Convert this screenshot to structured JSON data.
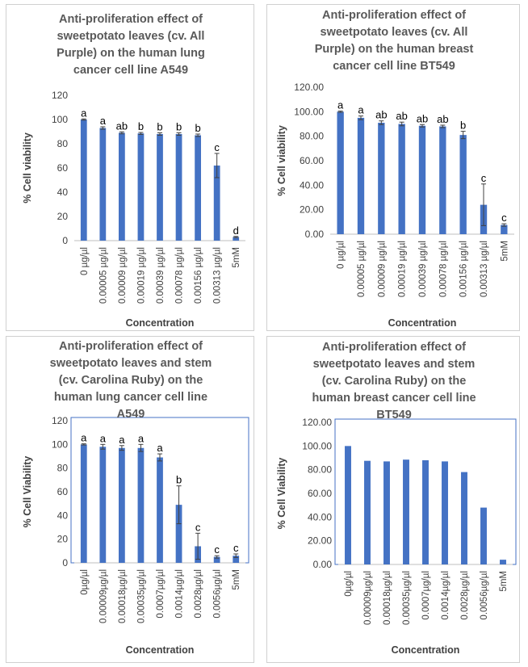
{
  "chart_data": [
    {
      "type": "bar",
      "title_lines": [
        "Anti-proliferation effect of",
        "sweetpotato  leaves (cv. All",
        "Purple) on the human lung",
        "cancer cell line A549"
      ],
      "xlabel": "Concentration",
      "ylabel": "% Cell viability",
      "ylim": [
        0,
        120
      ],
      "yticks": [
        "0",
        "20",
        "40",
        "60",
        "80",
        "100",
        "120"
      ],
      "categories": [
        "0 µg/µl",
        "0.00005 µg/µl",
        "0.00009 µg/µl",
        "0.00019 µg/µl",
        "0.00039 µg/µl",
        "0.00078 µg/µl",
        "0.00156 µg/µl",
        "0.00313 µg/µl",
        "5mM"
      ],
      "values": [
        100,
        93,
        89,
        88.5,
        88,
        88,
        87,
        62,
        3
      ],
      "errors": [
        0.5,
        1,
        0.8,
        0.8,
        1,
        1,
        1,
        10,
        0.5
      ],
      "labels": [
        "a",
        "a",
        "ab",
        "b",
        "b",
        "b",
        "b",
        "c",
        "d"
      ],
      "color": "#4472C4",
      "border": false
    },
    {
      "type": "bar",
      "title_lines": [
        "Anti-proliferation effect of",
        "sweetpotato leaves (cv. All",
        "Purple) on the human breast",
        "cancer cell line BT549"
      ],
      "xlabel": "Concentration",
      "ylabel": "% Cell viability",
      "ylim": [
        0,
        120
      ],
      "yticks": [
        "0.00",
        "20.00",
        "40.00",
        "60.00",
        "80.00",
        "100.00",
        "120.00"
      ],
      "categories": [
        "0 µg/µl",
        "0.00005 µg/µl",
        "0.00009 µg/µl",
        "0.00019 µg/µl",
        "0.00039 µg/µl",
        "0.00078 µg/µl",
        "0.00156 µg/µl",
        "0.00313 µg/µl",
        "5mM"
      ],
      "values": [
        100,
        95,
        91,
        90,
        88.5,
        88,
        81,
        24,
        7.5
      ],
      "errors": [
        0.5,
        1.5,
        1.5,
        1.5,
        1,
        1,
        3,
        17,
        1
      ],
      "labels": [
        "a",
        "a",
        "ab",
        "ab",
        "ab",
        "ab",
        "b",
        "c",
        "c"
      ],
      "color": "#4472C4",
      "border": false
    },
    {
      "type": "bar",
      "title_lines": [
        "Anti-proliferation effect of",
        "sweetpotato leaves and stem",
        "(cv. Carolina Ruby) on the",
        "human lung cancer cell line",
        "A549"
      ],
      "xlabel": "Concentration",
      "ylabel": "% Cell Viability",
      "ylim": [
        0,
        120
      ],
      "yticks": [
        "0",
        "20",
        "40",
        "60",
        "80",
        "100",
        "120"
      ],
      "categories": [
        "0µg/µl",
        "0.00009µg/µl",
        "0.00018µg/µl",
        "0.00035µg/µl",
        "0.0007µg/µl",
        "0.0014µg/µl",
        "0.0028µg/µl",
        "0.0056µg/µl",
        "5mM"
      ],
      "values": [
        100,
        98,
        97,
        97,
        89,
        49,
        14,
        5,
        6
      ],
      "errors": [
        0.5,
        2,
        2,
        3,
        3,
        16,
        11,
        1,
        1.5
      ],
      "labels": [
        "a",
        "a",
        "a",
        "a",
        "a",
        "b",
        "c",
        "c",
        "c"
      ],
      "color": "#4472C4",
      "border": true
    },
    {
      "type": "bar",
      "title_lines": [
        "Anti-proliferation effect of",
        "sweetpotato leaves and stem",
        "(cv. Carolina Ruby) on the",
        "human breast cancer cell line",
        "BT549"
      ],
      "xlabel": "Concentration",
      "ylabel": "% Cell Viability",
      "ylim": [
        0,
        120
      ],
      "yticks": [
        "0.00",
        "20.00",
        "40.00",
        "60.00",
        "80.00",
        "100.00",
        "120.00"
      ],
      "categories": [
        "0µg/µl",
        "0.00009µg/µl",
        "0.00018µg/µl",
        "0.00035µg/µl",
        "0.0007µg/µl",
        "0.0014µg/µl",
        "0.0028µg/µl",
        "0.0056µg/µl",
        "5mM"
      ],
      "values": [
        100,
        87.5,
        87,
        88.5,
        88,
        87,
        78,
        48,
        4
      ],
      "errors": [
        0,
        0,
        0,
        0,
        0,
        0,
        0,
        0,
        0
      ],
      "labels": [
        "",
        "",
        "",
        "",
        "",
        "",
        "",
        "",
        ""
      ],
      "color": "#4472C4",
      "border": true
    }
  ]
}
